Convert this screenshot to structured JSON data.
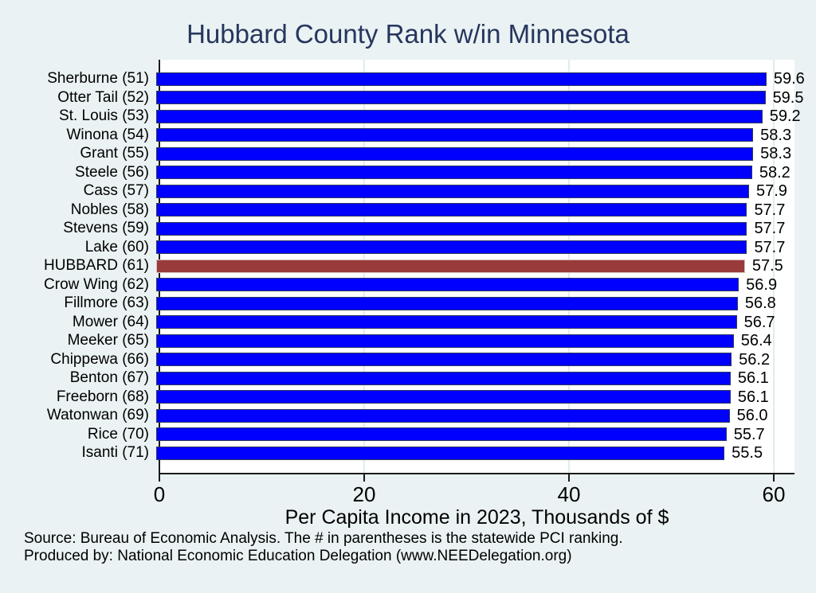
{
  "title": "Hubbard County Rank w/in Minnesota",
  "chart_data": {
    "type": "bar",
    "orientation": "horizontal",
    "title": "Hubbard County Rank w/in Minnesota",
    "xlabel": "Per Capita Income in 2023, Thousands of $",
    "xticks": [
      "0",
      "20",
      "40",
      "60"
    ],
    "xtick_values": [
      0,
      20,
      40,
      60
    ],
    "xlim": [
      0,
      62
    ],
    "grid": true,
    "categories": [
      "Sherburne (51)",
      "Otter Tail (52)",
      "St. Louis (53)",
      "Winona (54)",
      "Grant (55)",
      "Steele (56)",
      "Cass (57)",
      "Nobles (58)",
      "Stevens (59)",
      "Lake (60)",
      "HUBBARD (61)",
      "Crow Wing (62)",
      "Fillmore (63)",
      "Mower (64)",
      "Meeker (65)",
      "Chippewa (66)",
      "Benton (67)",
      "Freeborn (68)",
      "Watonwan (69)",
      "Rice (70)",
      "Isanti (71)"
    ],
    "values": [
      59.6,
      59.5,
      59.2,
      58.3,
      58.3,
      58.2,
      57.9,
      57.7,
      57.7,
      57.7,
      57.5,
      56.9,
      56.8,
      56.7,
      56.4,
      56.2,
      56.1,
      56.1,
      56.0,
      55.7,
      55.5
    ],
    "value_labels": [
      "59.6",
      "59.5",
      "59.2",
      "58.3",
      "58.3",
      "58.2",
      "57.9",
      "57.7",
      "57.7",
      "57.7",
      "57.5",
      "56.9",
      "56.8",
      "56.7",
      "56.4",
      "56.2",
      "56.1",
      "56.1",
      "56.0",
      "55.7",
      "55.5"
    ],
    "highlight_index": 10,
    "highlight_category": "HUBBARD (61)",
    "colors": {
      "bar": "#0000fe",
      "bar_outline": "#2e3a60",
      "highlight_bar": "#993b3b",
      "highlight_outline": "#d8c4c4",
      "background": "#eaf2f3",
      "plot_background": "#ffffff",
      "title": "#26365e",
      "gridline": "#dfecf2"
    }
  },
  "footer": {
    "line1": "Source: Bureau of Economic Analysis. The # in parentheses is the statewide PCI ranking.",
    "line2": "Produced by: National Economic Education Delegation (www.NEEDelegation.org)"
  }
}
